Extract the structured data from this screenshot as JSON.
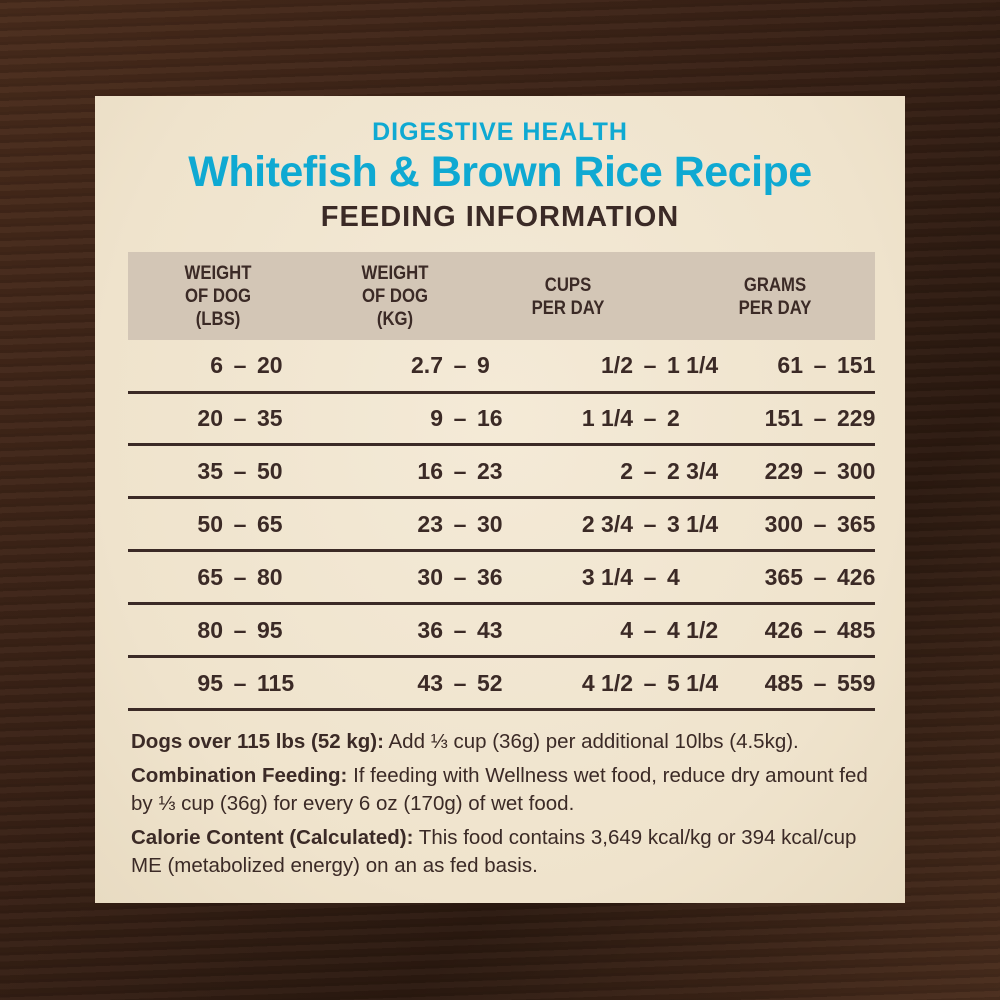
{
  "header": {
    "subtitle": "DIGESTIVE HEALTH",
    "title": "Whitefish & Brown Rice Recipe",
    "section": "FEEDING INFORMATION"
  },
  "table": {
    "columns": [
      "WEIGHT\nOF DOG\n(LBS)",
      "WEIGHT\nOF DOG\n(KG)",
      "CUPS\nPER DAY",
      "GRAMS\nPER DAY"
    ],
    "rows": [
      [
        [
          "6",
          "20"
        ],
        [
          "2.7",
          "9"
        ],
        [
          "1/2",
          "1 1/4"
        ],
        [
          "61",
          "151"
        ]
      ],
      [
        [
          "20",
          "35"
        ],
        [
          "9",
          "16"
        ],
        [
          "1 1/4",
          "2"
        ],
        [
          "151",
          "229"
        ]
      ],
      [
        [
          "35",
          "50"
        ],
        [
          "16",
          "23"
        ],
        [
          "2",
          "2 3/4"
        ],
        [
          "229",
          "300"
        ]
      ],
      [
        [
          "50",
          "65"
        ],
        [
          "23",
          "30"
        ],
        [
          "2 3/4",
          "3 1/4"
        ],
        [
          "300",
          "365"
        ]
      ],
      [
        [
          "65",
          "80"
        ],
        [
          "30",
          "36"
        ],
        [
          "3 1/4",
          "4"
        ],
        [
          "365",
          "426"
        ]
      ],
      [
        [
          "80",
          "95"
        ],
        [
          "36",
          "43"
        ],
        [
          "4",
          "4 1/2"
        ],
        [
          "426",
          "485"
        ]
      ],
      [
        [
          "95",
          "115"
        ],
        [
          "43",
          "52"
        ],
        [
          "4 1/2",
          "5 1/4"
        ],
        [
          "485",
          "559"
        ]
      ]
    ],
    "separator": "–"
  },
  "notes": [
    {
      "label": "Dogs over 115 lbs (52 kg):",
      "text": " Add ⅓ cup (36g) per additional 10lbs (4.5kg)."
    },
    {
      "label": "Combination Feeding:",
      "text": " If feeding with Wellness wet food, reduce dry amount fed by ⅓ cup (36g) for every 6 oz (170g) of wet food."
    },
    {
      "label": "Calorie Content (Calculated):",
      "text": " This food contains 3,649 kcal/kg or 394 kcal/cup ME (metabolized energy) on an as fed basis."
    }
  ],
  "colors": {
    "accent": "#0fa9d2",
    "text": "#3b2a26",
    "header_band": "#d3c6b6",
    "card": "#efe3cc"
  }
}
